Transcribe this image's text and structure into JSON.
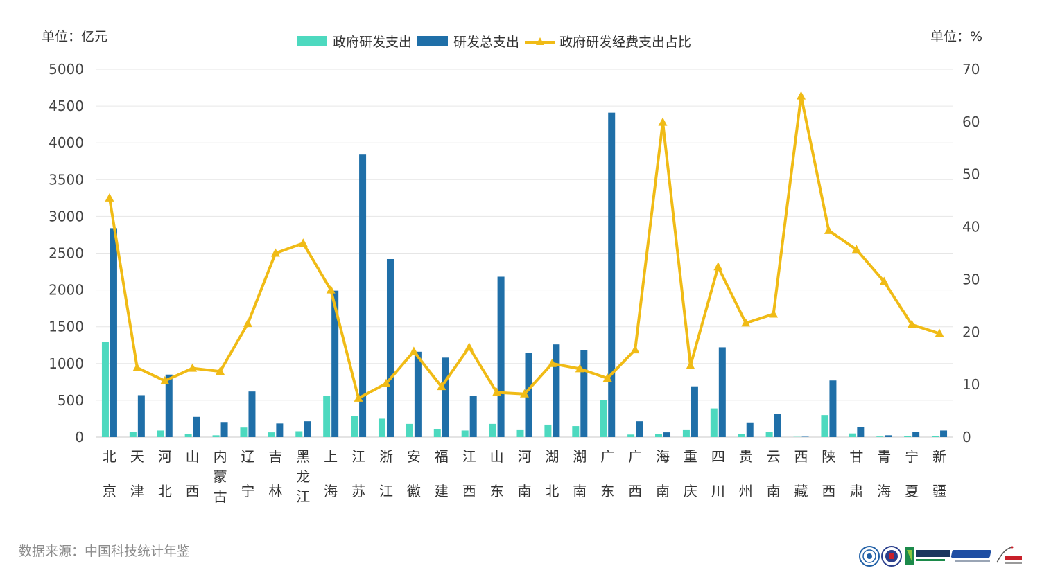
{
  "units": {
    "left": "单位：亿元",
    "right": "单位：%"
  },
  "source": "数据来源：中国科技统计年鉴",
  "colors": {
    "gov": "#4dd9bf",
    "total": "#1f6fa8",
    "ratio": "#f0bb16"
  },
  "logos": [
    "seal-logo",
    "university-logo",
    "aacsb-accredited-logo",
    "camea-logo",
    "equis-accredited-logo"
  ],
  "chart_data": {
    "type": "bar",
    "categories": [
      "北京",
      "天津",
      "河北",
      "山西",
      "内蒙古",
      "辽宁",
      "吉林",
      "黑龙江",
      "上海",
      "江苏",
      "浙江",
      "安徽",
      "福建",
      "江西",
      "山东",
      "河南",
      "湖北",
      "湖南",
      "广东",
      "广西",
      "海南",
      "重庆",
      "四川",
      "贵州",
      "云南",
      "西藏",
      "陕西",
      "甘肃",
      "青海",
      "宁夏",
      "新疆"
    ],
    "series": [
      {
        "name": "政府研发支出",
        "type": "bar",
        "axis": "left",
        "values": [
          1290,
          75,
          90,
          40,
          25,
          130,
          65,
          80,
          560,
          290,
          250,
          180,
          105,
          90,
          180,
          95,
          170,
          150,
          500,
          35,
          40,
          95,
          390,
          45,
          70,
          3,
          300,
          50,
          8,
          15,
          15
        ]
      },
      {
        "name": "研发总支出",
        "type": "bar",
        "axis": "left",
        "values": [
          2840,
          570,
          850,
          275,
          205,
          620,
          185,
          215,
          1990,
          3840,
          2420,
          1160,
          1080,
          560,
          2180,
          1140,
          1260,
          1180,
          4410,
          215,
          65,
          690,
          1220,
          200,
          315,
          5,
          770,
          140,
          25,
          75,
          90
        ]
      },
      {
        "name": "政府研发经费支出占比",
        "type": "line",
        "axis": "right",
        "values": [
          45.5,
          13.2,
          10.7,
          13.1,
          12.5,
          21.6,
          35.0,
          36.9,
          28.0,
          7.4,
          10.2,
          16.3,
          9.6,
          17.1,
          8.5,
          8.2,
          14.0,
          13.0,
          11.2,
          16.6,
          59.9,
          13.6,
          32.4,
          21.7,
          23.4,
          64.9,
          39.3,
          35.7,
          29.6,
          21.4,
          19.7
        ]
      }
    ],
    "y_left": {
      "min": 0,
      "max": 5000,
      "ticks": [
        0,
        500,
        1000,
        1500,
        2000,
        2500,
        3000,
        3500,
        4000,
        4500,
        5000
      ]
    },
    "y_right": {
      "min": 0,
      "max": 70,
      "ticks": [
        0,
        10,
        20,
        30,
        40,
        50,
        60,
        70
      ]
    },
    "grid": true,
    "legend_position": "top-center"
  }
}
